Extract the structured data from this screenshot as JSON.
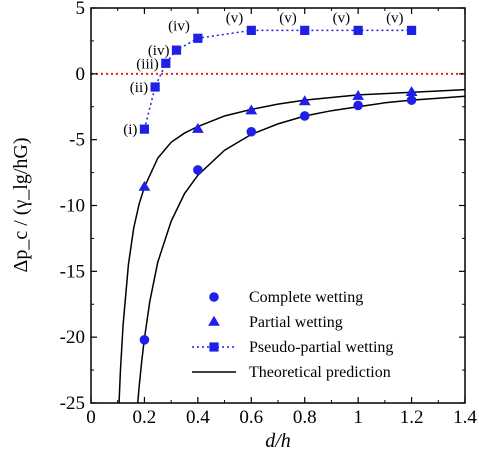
{
  "chart_data": {
    "type": "scatter",
    "xlabel": "d/h",
    "ylabel": "Δp_c / (γ_lg/hG)",
    "xlim": [
      0,
      1.4
    ],
    "ylim": [
      -25,
      5
    ],
    "xticks": [
      0,
      0.2,
      0.4,
      0.6,
      0.8,
      1.0,
      1.2,
      1.4
    ],
    "xtick_labels": [
      "0",
      "0.2",
      "0.4",
      "0.6",
      "0.8",
      "1",
      "1.2",
      "1.4"
    ],
    "yticks": [
      -25,
      -20,
      -15,
      -10,
      -5,
      0,
      5
    ],
    "ytick_labels": [
      "-25",
      "-20",
      "-15",
      "-10",
      "-5",
      "0",
      "5"
    ],
    "grid": false,
    "legend_position": "bottom-right",
    "reference_line": {
      "y": 0,
      "color": "#e8210f",
      "style": "dotted"
    },
    "series": [
      {
        "name": "Complete wetting",
        "marker": "circle",
        "color": "#1f1fe6",
        "x": [
          0.2,
          0.4,
          0.6,
          0.8,
          1.0,
          1.2
        ],
        "y": [
          -20.2,
          -7.3,
          -4.4,
          -3.2,
          -2.4,
          -2.0
        ]
      },
      {
        "name": "Partial wetting",
        "marker": "triangle",
        "color": "#1f1fe6",
        "x": [
          0.2,
          0.4,
          0.6,
          0.8,
          1.0,
          1.2
        ],
        "y": [
          -8.6,
          -4.2,
          -2.8,
          -2.1,
          -1.7,
          -1.4
        ]
      },
      {
        "name": "Pseudo-partial wetting",
        "marker": "square",
        "line": "dotted",
        "color": "#1f1fe6",
        "x": [
          0.2,
          0.24,
          0.28,
          0.32,
          0.4,
          0.6,
          0.8,
          1.0,
          1.2
        ],
        "y": [
          -4.2,
          -1.0,
          0.8,
          1.8,
          2.7,
          3.3,
          3.3,
          3.3,
          3.3
        ],
        "point_labels": [
          "(i)",
          "(ii)",
          "(iii)",
          "(iv)",
          "(iv)",
          "(v)",
          "(v)",
          "(v)",
          "(v)"
        ]
      },
      {
        "name": "Theoretical prediction",
        "marker": "none",
        "line": "solid",
        "color": "#000000",
        "curves": [
          {
            "x": [
              0.105,
              0.11,
              0.12,
              0.14,
              0.16,
              0.18,
              0.2,
              0.25,
              0.3,
              0.35,
              0.4,
              0.5,
              0.6,
              0.7,
              0.8,
              0.9,
              1.0,
              1.1,
              1.2,
              1.3,
              1.4
            ],
            "y": [
              -25.0,
              -22.6,
              -19.1,
              -14.5,
              -11.7,
              -9.9,
              -8.6,
              -6.4,
              -5.2,
              -4.5,
              -4.0,
              -3.2,
              -2.7,
              -2.3,
              -2.0,
              -1.8,
              -1.6,
              -1.5,
              -1.4,
              -1.3,
              -1.2
            ]
          },
          {
            "x": [
              0.175,
              0.18,
              0.19,
              0.2,
              0.22,
              0.25,
              0.3,
              0.35,
              0.4,
              0.5,
              0.6,
              0.7,
              0.8,
              0.9,
              1.0,
              1.1,
              1.2,
              1.3,
              1.4
            ],
            "y": [
              -25.0,
              -23.8,
              -21.8,
              -20.1,
              -17.3,
              -14.3,
              -11.2,
              -9.1,
              -7.7,
              -5.8,
              -4.6,
              -3.8,
              -3.2,
              -2.8,
              -2.5,
              -2.2,
              -2.0,
              -1.85,
              -1.7
            ]
          }
        ]
      }
    ]
  }
}
